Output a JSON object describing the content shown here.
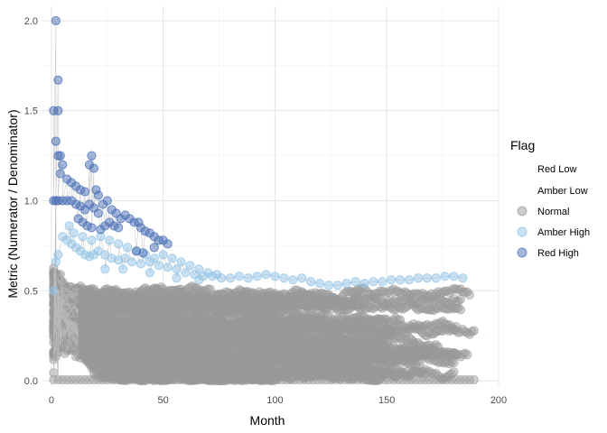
{
  "chart_data": {
    "type": "scatter",
    "title": "",
    "xlabel": "Month",
    "ylabel": "Metric (Numerator / Denominator)",
    "xlim": [
      -4,
      200
    ],
    "ylim": [
      -0.03,
      2.08
    ],
    "x_ticks": [
      0,
      50,
      100,
      150,
      200
    ],
    "y_ticks": [
      0.0,
      0.5,
      1.0,
      1.5,
      2.0
    ],
    "x_tick_labels": [
      "0",
      "50",
      "100",
      "150",
      "200"
    ],
    "y_tick_labels": [
      "0.0",
      "0.5",
      "1.0",
      "1.5",
      "2.0"
    ],
    "grid": true,
    "legend": {
      "title": "Flag",
      "position": "right",
      "entries": [
        {
          "label": "Red Low",
          "color": null
        },
        {
          "label": "Amber Low",
          "color": null
        },
        {
          "label": "Normal",
          "color": "#999999"
        },
        {
          "label": "Amber High",
          "color": "#93c4e6"
        },
        {
          "label": "Red High",
          "color": "#4a6fb5"
        }
      ]
    },
    "line_color": "#bdbdbd",
    "series": [
      {
        "flag": "Red High",
        "color": "#4a6fb5",
        "points": [
          [
            2,
            2.0
          ],
          [
            3,
            1.67
          ],
          [
            1,
            1.5
          ],
          [
            3,
            1.5
          ],
          [
            2,
            1.33
          ],
          [
            3,
            1.25
          ],
          [
            4,
            1.25
          ],
          [
            5,
            1.2
          ],
          [
            4,
            1.15
          ],
          [
            7,
            1.12
          ],
          [
            9,
            1.1
          ],
          [
            11,
            1.08
          ],
          [
            13,
            1.06
          ],
          [
            15,
            1.05
          ],
          [
            17,
            1.2
          ],
          [
            18,
            1.25
          ],
          [
            19,
            1.18
          ],
          [
            20,
            1.06
          ],
          [
            21,
            1.03
          ],
          [
            1,
            1.0
          ],
          [
            2,
            1.0
          ],
          [
            3,
            1.0
          ],
          [
            5,
            1.0
          ],
          [
            7,
            1.0
          ],
          [
            9,
            1.0
          ],
          [
            11,
            0.98
          ],
          [
            13,
            0.97
          ],
          [
            15,
            0.95
          ],
          [
            17,
            0.98
          ],
          [
            19,
            0.96
          ],
          [
            21,
            0.93
          ],
          [
            23,
            0.98
          ],
          [
            25,
            1.0
          ],
          [
            27,
            0.95
          ],
          [
            29,
            0.93
          ],
          [
            31,
            0.9
          ],
          [
            33,
            0.92
          ],
          [
            35,
            0.9
          ],
          [
            37,
            0.88
          ],
          [
            39,
            0.88
          ],
          [
            40,
            0.85
          ],
          [
            12,
            0.9
          ],
          [
            14,
            0.88
          ],
          [
            16,
            0.86
          ],
          [
            18,
            0.85
          ],
          [
            22,
            0.84
          ],
          [
            24,
            0.86
          ],
          [
            26,
            0.88
          ],
          [
            28,
            0.86
          ],
          [
            30,
            0.85
          ],
          [
            42,
            0.83
          ],
          [
            44,
            0.82
          ],
          [
            46,
            0.8
          ],
          [
            48,
            0.78
          ],
          [
            50,
            0.78
          ],
          [
            52,
            0.76
          ],
          [
            38,
            0.72
          ],
          [
            41,
            0.71
          ],
          [
            46,
            0.74
          ]
        ]
      },
      {
        "flag": "Amber High",
        "color": "#93c4e6",
        "points": [
          [
            1,
            0.5
          ],
          [
            2,
            0.66
          ],
          [
            3,
            0.7
          ],
          [
            5,
            0.8
          ],
          [
            7,
            0.78
          ],
          [
            9,
            0.76
          ],
          [
            11,
            0.74
          ],
          [
            13,
            0.72
          ],
          [
            15,
            0.7
          ],
          [
            17,
            0.69
          ],
          [
            19,
            0.7
          ],
          [
            21,
            0.72
          ],
          [
            24,
            0.7
          ],
          [
            27,
            0.68
          ],
          [
            30,
            0.67
          ],
          [
            33,
            0.68
          ],
          [
            36,
            0.66
          ],
          [
            40,
            0.65
          ],
          [
            44,
            0.66
          ],
          [
            48,
            0.64
          ],
          [
            52,
            0.63
          ],
          [
            56,
            0.62
          ],
          [
            60,
            0.6
          ],
          [
            64,
            0.59
          ],
          [
            68,
            0.58
          ],
          [
            72,
            0.58
          ],
          [
            76,
            0.57
          ],
          [
            80,
            0.57
          ],
          [
            84,
            0.58
          ],
          [
            88,
            0.57
          ],
          [
            92,
            0.58
          ],
          [
            96,
            0.59
          ],
          [
            100,
            0.58
          ],
          [
            104,
            0.57
          ],
          [
            108,
            0.56
          ],
          [
            112,
            0.57
          ],
          [
            116,
            0.55
          ],
          [
            120,
            0.54
          ],
          [
            124,
            0.53
          ],
          [
            128,
            0.53
          ],
          [
            132,
            0.54
          ],
          [
            136,
            0.55
          ],
          [
            140,
            0.54
          ],
          [
            144,
            0.55
          ],
          [
            148,
            0.55
          ],
          [
            152,
            0.56
          ],
          [
            156,
            0.56
          ],
          [
            160,
            0.56
          ],
          [
            164,
            0.57
          ],
          [
            168,
            0.57
          ],
          [
            172,
            0.57
          ],
          [
            176,
            0.58
          ],
          [
            180,
            0.58
          ],
          [
            184,
            0.57
          ],
          [
            8,
            0.86
          ],
          [
            10,
            0.82
          ],
          [
            14,
            0.8
          ],
          [
            18,
            0.78
          ],
          [
            22,
            0.8
          ],
          [
            26,
            0.78
          ],
          [
            30,
            0.76
          ],
          [
            34,
            0.74
          ],
          [
            38,
            0.72
          ],
          [
            42,
            0.7
          ],
          [
            46,
            0.68
          ],
          [
            50,
            0.7
          ],
          [
            54,
            0.68
          ],
          [
            58,
            0.66
          ],
          [
            62,
            0.64
          ],
          [
            66,
            0.62
          ],
          [
            70,
            0.6
          ],
          [
            74,
            0.59
          ],
          [
            24,
            0.62
          ],
          [
            32,
            0.62
          ],
          [
            44,
            0.6
          ],
          [
            56,
            0.57
          ],
          [
            66,
            0.56
          ]
        ]
      }
    ]
  }
}
